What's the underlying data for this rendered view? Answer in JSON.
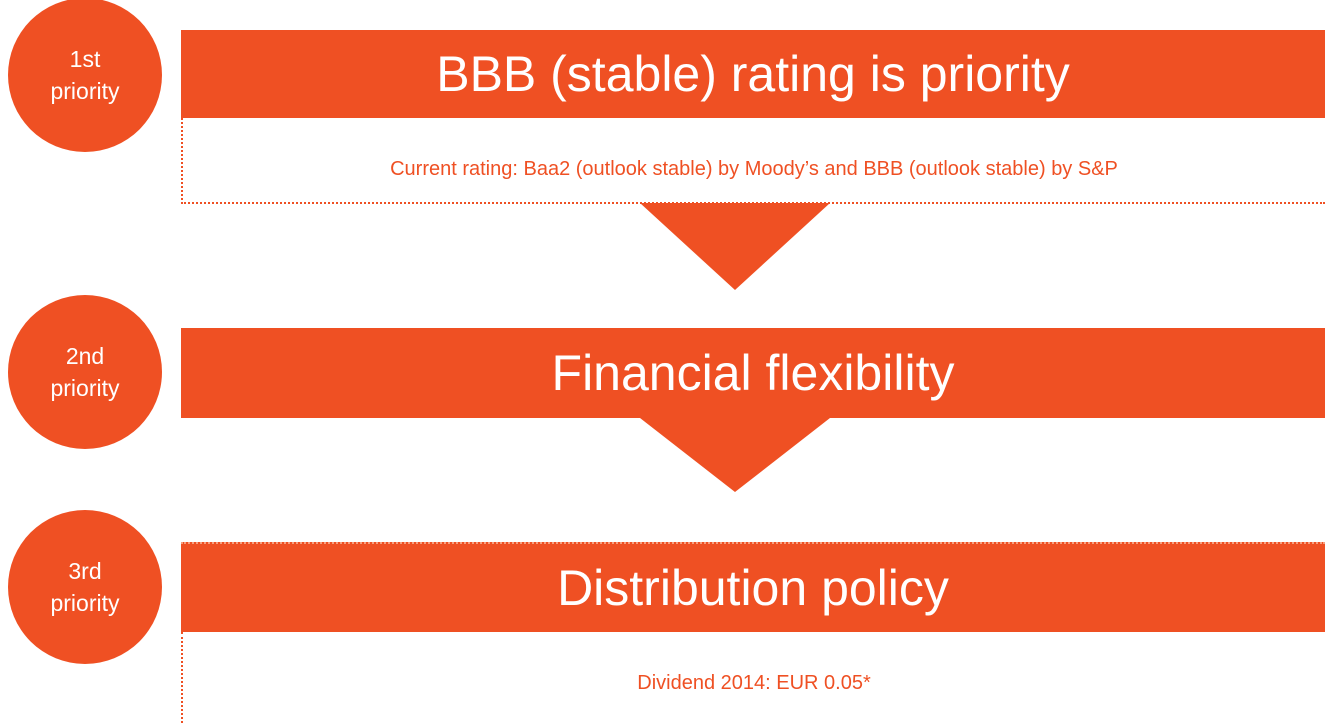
{
  "priorities": [
    {
      "badge": "1st priority",
      "title": "BBB (stable) rating is priority",
      "detail": "Current rating: Baa2 (outlook stable) by Moody’s and BBB (outlook stable) by S&P"
    },
    {
      "badge": "2nd priority",
      "title": "Financial flexibility"
    },
    {
      "badge": "3rd priority",
      "title": "Distribution policy",
      "detail": "Dividend 2014: EUR 0.05*"
    }
  ]
}
